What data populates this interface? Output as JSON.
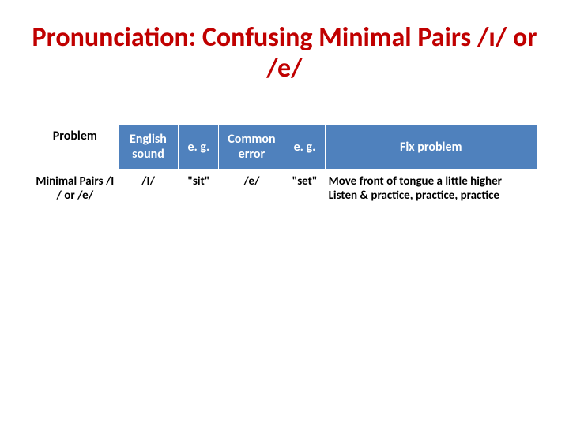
{
  "title": "Pronunciation: Confusing Minimal Pairs /ɪ/ or /e/",
  "table": {
    "headers": {
      "problem": "Problem",
      "sound": "English sound",
      "eg1": "e. g.",
      "common": "Common error",
      "eg2": "e. g.",
      "fix": "Fix problem"
    },
    "row": {
      "problem": "Minimal Pairs /I / or /e/",
      "sound": "/I/",
      "eg1": "\"sit\"",
      "common": "/e/",
      "eg2": "\"set\"",
      "fix": "Move front of tongue a little higher\nListen & practice, practice, practice"
    }
  },
  "colors": {
    "title": "#c00000",
    "header_bg": "#4f81bd",
    "header_fg": "#ffffff",
    "body_bg": "#ffffff",
    "body_fg": "#000000"
  },
  "fonts": {
    "title_size_pt": 26,
    "cell_size_pt": 12,
    "family": "Calibri"
  }
}
